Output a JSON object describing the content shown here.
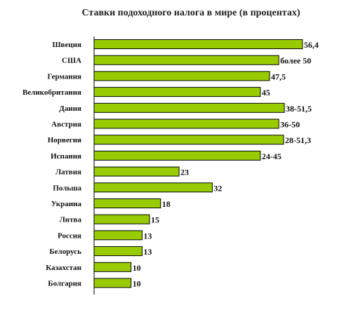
{
  "chart_data": {
    "type": "bar",
    "orientation": "horizontal",
    "title": "Ставки подоходного налога в мире (в процентах)",
    "xlabel": "",
    "ylabel": "",
    "xlim": [
      0,
      57
    ],
    "grid": false,
    "bar_color": "#99cc00",
    "categories": [
      "Швеция",
      "США",
      "Германия",
      "Великобритания",
      "Дания",
      "Австрия",
      "Норвегия",
      "Испания",
      "Латвия",
      "Польша",
      "Украина",
      "Литва",
      "Россия",
      "Белорусь",
      "Казахстан",
      "Болгария"
    ],
    "values": [
      56.4,
      50,
      47.5,
      45,
      51.5,
      50,
      51.3,
      45,
      23,
      32,
      18,
      15,
      13,
      13,
      10,
      10
    ],
    "value_labels": [
      "56,4",
      "более 50",
      "47,5",
      "45",
      "38-51,5",
      "36-50",
      "28-51,3",
      "24-45",
      "23",
      "32",
      "18",
      "15",
      "13",
      "13",
      "10",
      "10"
    ]
  }
}
